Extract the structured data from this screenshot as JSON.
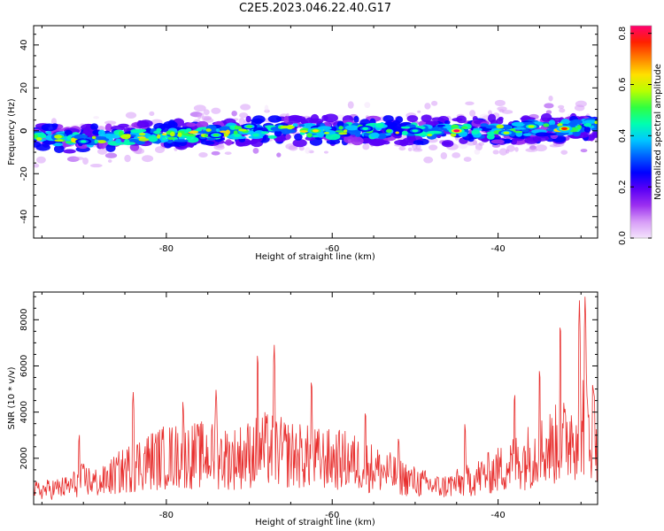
{
  "title": "C2E5.2023.046.22.40.G17",
  "colors": {
    "snr_line": "#e8302f",
    "colormap": [
      "#f4e4fc",
      "#d79cf7",
      "#9c30f0",
      "#5a00f6",
      "#0000ff",
      "#0060ff",
      "#00c8ff",
      "#00ffb0",
      "#30ff40",
      "#b8ff00",
      "#ffe000",
      "#ff8000",
      "#ff2000",
      "#ff0070"
    ]
  },
  "chart_data": [
    {
      "type": "heatmap",
      "xlabel": "Height of straight line (km)",
      "ylabel": "Frequency (Hz)",
      "xlim": [
        -96,
        -28
      ],
      "ylim": [
        -50,
        49
      ],
      "xticks": [
        -80,
        -60,
        -40
      ],
      "yticks": [
        -40,
        -20,
        0,
        20,
        40
      ],
      "colorbar": {
        "label": "Normalized spectral amplitude",
        "range": [
          0.0,
          0.83
        ],
        "ticks": [
          0.0,
          0.2,
          0.4,
          0.6,
          0.8
        ]
      },
      "ridge": [
        {
          "x": -96,
          "y": -3
        },
        {
          "x": -90,
          "y": -4
        },
        {
          "x": -85,
          "y": -3
        },
        {
          "x": -80,
          "y": -2
        },
        {
          "x": -75,
          "y": -1
        },
        {
          "x": -70,
          "y": 0
        },
        {
          "x": -65,
          "y": 0
        },
        {
          "x": -60,
          "y": 0
        },
        {
          "x": -55,
          "y": 0
        },
        {
          "x": -50,
          "y": 0
        },
        {
          "x": -45,
          "y": 0
        },
        {
          "x": -40,
          "y": 0
        },
        {
          "x": -35,
          "y": 1
        },
        {
          "x": -28,
          "y": 2
        }
      ],
      "hotspots": [
        {
          "x": -45,
          "y": 0,
          "amp": 0.83
        },
        {
          "x": -62,
          "y": 0,
          "amp": 0.65
        },
        {
          "x": -32,
          "y": 1,
          "amp": 0.75
        },
        {
          "x": -39,
          "y": -1,
          "amp": 0.55
        },
        {
          "x": -70,
          "y": 2,
          "amp": 0.5
        },
        {
          "x": -74,
          "y": -2,
          "amp": 0.5
        },
        {
          "x": -90,
          "y": -5,
          "amp": 0.45
        },
        {
          "x": -36,
          "y": 2,
          "amp": 0.6
        },
        {
          "x": -56,
          "y": 1,
          "amp": 0.45
        },
        {
          "x": -50,
          "y": 0,
          "amp": 0.45
        }
      ]
    },
    {
      "type": "line",
      "xlabel": "Height of straight line (km)",
      "ylabel": "SNR (10 * v/v)",
      "xlim": [
        -96,
        -28
      ],
      "ylim": [
        0,
        9200
      ],
      "xticks": [
        -80,
        -60,
        -40
      ],
      "yticks": [
        2000,
        4000,
        6000,
        8000
      ],
      "envelope": [
        {
          "x": -96,
          "y": 700
        },
        {
          "x": -92,
          "y": 900
        },
        {
          "x": -90,
          "y": 1300
        },
        {
          "x": -88,
          "y": 1100
        },
        {
          "x": -86,
          "y": 1600
        },
        {
          "x": -83,
          "y": 2200
        },
        {
          "x": -80,
          "y": 2500
        },
        {
          "x": -75,
          "y": 2600
        },
        {
          "x": -72,
          "y": 2400
        },
        {
          "x": -68,
          "y": 2900
        },
        {
          "x": -66,
          "y": 2700
        },
        {
          "x": -62,
          "y": 2400
        },
        {
          "x": -58,
          "y": 2300
        },
        {
          "x": -55,
          "y": 1900
        },
        {
          "x": -50,
          "y": 1200
        },
        {
          "x": -47,
          "y": 900
        },
        {
          "x": -44,
          "y": 1200
        },
        {
          "x": -40,
          "y": 1800
        },
        {
          "x": -36,
          "y": 2600
        },
        {
          "x": -32,
          "y": 3300
        },
        {
          "x": -30,
          "y": 4500
        },
        {
          "x": -28,
          "y": 3800
        }
      ],
      "peaks": [
        {
          "x": -67,
          "y": 7100
        },
        {
          "x": -69,
          "y": 6800
        },
        {
          "x": -62.5,
          "y": 5600
        },
        {
          "x": -84,
          "y": 5000
        },
        {
          "x": -74,
          "y": 5100
        },
        {
          "x": -29.5,
          "y": 9200
        },
        {
          "x": -30.2,
          "y": 9000
        },
        {
          "x": -32.5,
          "y": 8200
        },
        {
          "x": -35,
          "y": 6100
        },
        {
          "x": -90.5,
          "y": 3100
        },
        {
          "x": -78,
          "y": 4600
        },
        {
          "x": -56,
          "y": 4200
        },
        {
          "x": -38,
          "y": 5000
        },
        {
          "x": -28.5,
          "y": 5300
        },
        {
          "x": -44,
          "y": 3600
        },
        {
          "x": -52,
          "y": 3000
        }
      ]
    }
  ]
}
